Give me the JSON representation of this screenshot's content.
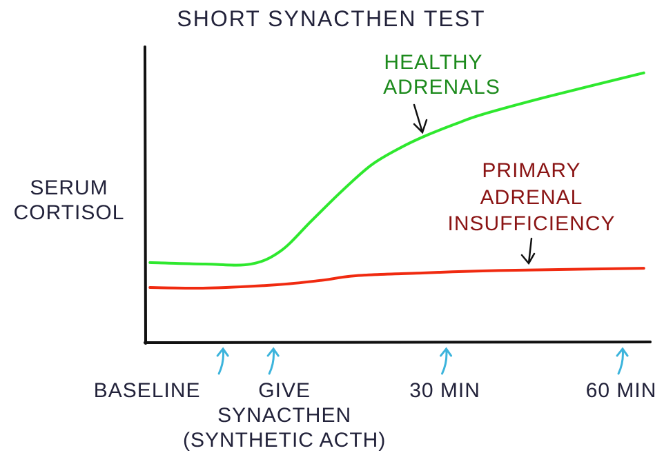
{
  "chart_data": {
    "type": "line",
    "title": "SHORT SYNACTHEN TEST",
    "ylabel": [
      "SERUM",
      "CORTISOL"
    ],
    "xlabel": "",
    "xlim": [
      0,
      100
    ],
    "ylim": [
      0,
      100
    ],
    "grid": false,
    "legend": "none",
    "series": [
      {
        "name": "HEALTHY ADRENALS",
        "label_lines": [
          "HEALTHY",
          "ADRENALS"
        ],
        "color": "#2ee82e",
        "label_color": "#1c8a1c",
        "x": [
          1,
          12,
          21,
          27,
          33,
          39,
          45,
          51,
          56,
          62,
          67,
          80,
          99
        ],
        "y": [
          27,
          26.5,
          26.5,
          31,
          41,
          51,
          60,
          66,
          70,
          74,
          77,
          83,
          91
        ]
      },
      {
        "name": "PRIMARY ADRENAL INSUFFICIENCY",
        "label_lines": [
          "PRIMARY",
          "ADRENAL",
          "INSUFFICIENCY"
        ],
        "color": "#f02a10",
        "label_color": "#8a1414",
        "x": [
          1,
          12,
          26,
          35,
          42,
          55,
          67,
          80,
          99
        ],
        "y": [
          18.6,
          18.4,
          19.5,
          21,
          22.6,
          23.5,
          24.2,
          24.6,
          25.1
        ]
      }
    ],
    "annotations": [
      {
        "x": 15.5,
        "lines": [
          "BASELINE"
        ]
      },
      {
        "x": 25.5,
        "lines": [
          "GIVE",
          "SYNACTHEN",
          "(SYNTHETIC ACTH)"
        ]
      },
      {
        "x": 59.8,
        "lines": [
          "30 MIN"
        ]
      },
      {
        "x": 94.8,
        "lines": [
          "60 MIN"
        ]
      }
    ],
    "arrow_color": "#3cb4dc"
  }
}
